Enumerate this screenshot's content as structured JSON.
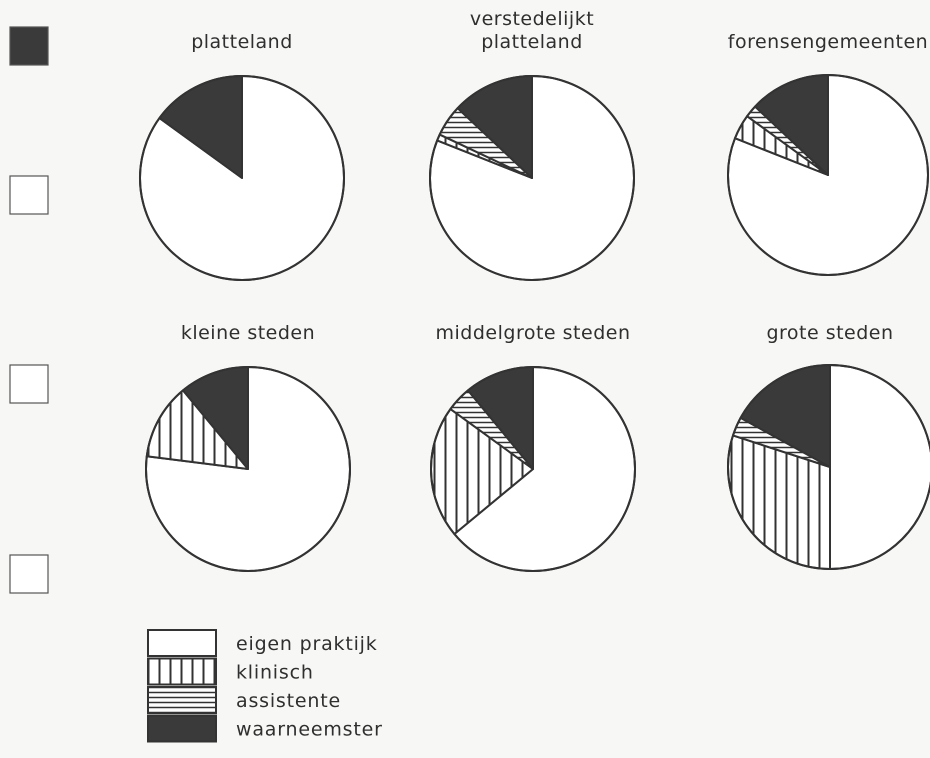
{
  "chart_data": {
    "type": "pie",
    "categories": [
      "eigen praktijk",
      "klinisch",
      "assistente",
      "waarneemster"
    ],
    "colors": {
      "eigen praktijk": "#ffffff",
      "klinisch": "vertical-hatch",
      "assistente": "horizontal-hatch",
      "waarneemster": "#3a3a3a"
    },
    "legend": [
      {
        "name": "eigen praktijk",
        "pattern": "white"
      },
      {
        "name": "klinisch",
        "pattern": "vertical-hatch"
      },
      {
        "name": "assistente",
        "pattern": "horizontal-hatch"
      },
      {
        "name": "waarneemster",
        "pattern": "dark"
      }
    ],
    "legend_placement": "bottom-left",
    "pies": [
      {
        "title": [
          "platteland"
        ],
        "values": [
          85,
          0,
          0,
          15
        ]
      },
      {
        "title": [
          "verstedelijkt",
          "platteland"
        ],
        "values": [
          81,
          1,
          5,
          13
        ]
      },
      {
        "title": [
          "forensengemeenten"
        ],
        "values": [
          81,
          4,
          2,
          13
        ]
      },
      {
        "title": [
          "kleine steden"
        ],
        "values": [
          77,
          12,
          0,
          11
        ]
      },
      {
        "title": [
          "middelgrote steden"
        ],
        "values": [
          64,
          21,
          4,
          11
        ]
      },
      {
        "title": [
          "grote steden"
        ],
        "values": [
          50,
          30,
          3,
          17
        ]
      }
    ]
  }
}
